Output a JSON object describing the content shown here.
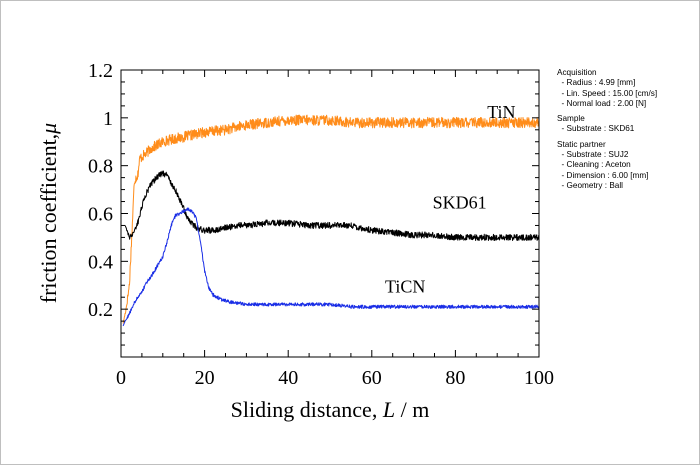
{
  "chart_data": {
    "type": "line",
    "xlabel_main": "Sliding distance,",
    "xlabel_symbol": "L",
    "xlabel_unit": "/ m",
    "ylabel_main": "friction coefficient,",
    "ylabel_symbol": "μ",
    "xlim": [
      0,
      100
    ],
    "ylim": [
      0,
      1.2
    ],
    "xticks": [
      {
        "value": 0,
        "label": "0"
      },
      {
        "value": 20,
        "label": "20"
      },
      {
        "value": 40,
        "label": "40"
      },
      {
        "value": 60,
        "label": "60"
      },
      {
        "value": 80,
        "label": "80"
      },
      {
        "value": 100,
        "label": "100"
      }
    ],
    "yticks": [
      {
        "value": 0.2,
        "label": "0.2"
      },
      {
        "value": 0.4,
        "label": "0.4"
      },
      {
        "value": 0.6,
        "label": "0.6"
      },
      {
        "value": 0.8,
        "label": "0.8"
      },
      {
        "value": 1.0,
        "label": "1"
      },
      {
        "value": 1.2,
        "label": "1.2"
      }
    ],
    "series": [
      {
        "name": "TiN",
        "color": "#ff8c1a",
        "label_at": {
          "x": 91,
          "y": 1.0
        },
        "noise": 0.022,
        "points": [
          [
            0.5,
            0.14
          ],
          [
            1.2,
            0.2
          ],
          [
            2,
            0.3
          ],
          [
            2.7,
            0.55
          ],
          [
            3.2,
            0.74
          ],
          [
            4,
            0.76
          ],
          [
            4.5,
            0.83
          ],
          [
            5.2,
            0.84
          ],
          [
            6,
            0.85
          ],
          [
            7,
            0.87
          ],
          [
            8,
            0.88
          ],
          [
            10,
            0.9
          ],
          [
            12,
            0.91
          ],
          [
            15,
            0.92
          ],
          [
            20,
            0.94
          ],
          [
            25,
            0.95
          ],
          [
            30,
            0.97
          ],
          [
            35,
            0.98
          ],
          [
            40,
            0.99
          ],
          [
            45,
            0.99
          ],
          [
            50,
            0.99
          ],
          [
            55,
            0.98
          ],
          [
            60,
            0.98
          ],
          [
            65,
            0.98
          ],
          [
            70,
            0.98
          ],
          [
            75,
            0.98
          ],
          [
            80,
            0.98
          ],
          [
            85,
            0.98
          ],
          [
            90,
            0.98
          ],
          [
            95,
            0.98
          ],
          [
            100,
            0.98
          ]
        ]
      },
      {
        "name": "SKD61",
        "color": "#000000",
        "label_at": {
          "x": 81,
          "y": 0.62
        },
        "noise": 0.013,
        "points": [
          [
            1,
            0.55
          ],
          [
            2,
            0.5
          ],
          [
            3,
            0.52
          ],
          [
            4,
            0.56
          ],
          [
            5,
            0.63
          ],
          [
            6,
            0.68
          ],
          [
            7,
            0.72
          ],
          [
            8,
            0.74
          ],
          [
            9,
            0.76
          ],
          [
            10,
            0.77
          ],
          [
            11,
            0.76
          ],
          [
            12,
            0.73
          ],
          [
            13,
            0.7
          ],
          [
            14,
            0.66
          ],
          [
            15,
            0.62
          ],
          [
            16,
            0.58
          ],
          [
            17,
            0.56
          ],
          [
            18,
            0.54
          ],
          [
            20,
            0.53
          ],
          [
            22,
            0.53
          ],
          [
            25,
            0.54
          ],
          [
            28,
            0.55
          ],
          [
            30,
            0.55
          ],
          [
            35,
            0.56
          ],
          [
            40,
            0.56
          ],
          [
            45,
            0.55
          ],
          [
            50,
            0.55
          ],
          [
            55,
            0.55
          ],
          [
            60,
            0.53
          ],
          [
            65,
            0.52
          ],
          [
            70,
            0.51
          ],
          [
            75,
            0.51
          ],
          [
            80,
            0.5
          ],
          [
            85,
            0.5
          ],
          [
            90,
            0.5
          ],
          [
            95,
            0.5
          ],
          [
            100,
            0.5
          ]
        ]
      },
      {
        "name": "TiCN",
        "color": "#1a2ee6",
        "label_at": {
          "x": 68,
          "y": 0.27
        },
        "noise": 0.007,
        "points": [
          [
            0.5,
            0.13
          ],
          [
            1,
            0.15
          ],
          [
            2,
            0.18
          ],
          [
            3,
            0.22
          ],
          [
            4,
            0.25
          ],
          [
            5,
            0.27
          ],
          [
            6,
            0.31
          ],
          [
            7,
            0.33
          ],
          [
            8,
            0.36
          ],
          [
            9,
            0.39
          ],
          [
            10,
            0.42
          ],
          [
            11,
            0.48
          ],
          [
            12,
            0.55
          ],
          [
            13,
            0.59
          ],
          [
            14,
            0.6
          ],
          [
            15,
            0.61
          ],
          [
            16,
            0.62
          ],
          [
            17,
            0.61
          ],
          [
            18,
            0.58
          ],
          [
            19,
            0.48
          ],
          [
            20,
            0.36
          ],
          [
            21,
            0.29
          ],
          [
            22,
            0.26
          ],
          [
            24,
            0.24
          ],
          [
            26,
            0.23
          ],
          [
            30,
            0.22
          ],
          [
            35,
            0.22
          ],
          [
            40,
            0.22
          ],
          [
            45,
            0.22
          ],
          [
            50,
            0.22
          ],
          [
            55,
            0.21
          ],
          [
            60,
            0.21
          ],
          [
            65,
            0.21
          ],
          [
            70,
            0.21
          ],
          [
            75,
            0.21
          ],
          [
            80,
            0.21
          ],
          [
            85,
            0.21
          ],
          [
            90,
            0.21
          ],
          [
            95,
            0.21
          ],
          [
            100,
            0.21
          ]
        ]
      }
    ]
  },
  "info_panel": {
    "sections": [
      {
        "title": "Acquisition",
        "lines": [
          "- Radius : 4.99 [mm]",
          "- Lin. Speed : 15.00 [cm/s]",
          "- Normal load : 2.00 [N]"
        ]
      },
      {
        "title": "Sample",
        "lines": [
          "- Substrate : SKD61"
        ]
      },
      {
        "title": "Static partner",
        "lines": [
          "- Substrate : SUJ2",
          "- Cleaning : Aceton",
          "- Dimension : 6.00 [mm]",
          "- Geometry : Ball"
        ]
      }
    ]
  }
}
